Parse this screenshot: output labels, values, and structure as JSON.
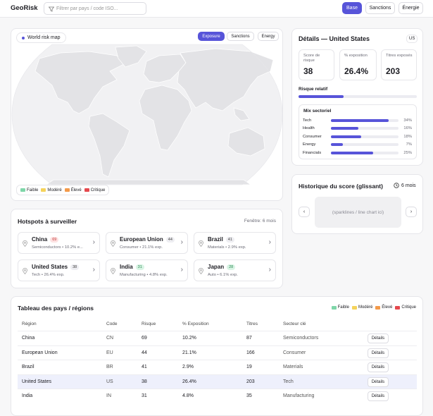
{
  "topbar": {
    "logo": "GeoRisk",
    "search_placeholder": "Filtrer par pays / code ISO...",
    "modes": [
      "Base",
      "Sanctions",
      "Énergie"
    ]
  },
  "map": {
    "title": "World risk map",
    "tabs": [
      "Exposure",
      "Sanctions",
      "Energy"
    ],
    "legend": [
      "Faible",
      "Modéré",
      "Élevé",
      "Critique"
    ]
  },
  "details": {
    "title": "Détails — United States",
    "code": "US",
    "stats": [
      {
        "label": "Score de risque",
        "value": 38
      },
      {
        "label": "% exposition",
        "value": 26.4,
        "value_label": "26.4%"
      },
      {
        "label": "Titres exposés",
        "value": 203
      }
    ],
    "relative_label": "Risque relatif",
    "mix_title": "Mix sectoriel",
    "mix": [
      {
        "name": "Tech",
        "value": 34,
        "value_label": "34%"
      },
      {
        "name": "Health",
        "value": 16,
        "value_label": "16%"
      },
      {
        "name": "Consumer",
        "value": 18,
        "value_label": "18%"
      },
      {
        "name": "Energy",
        "value": 7,
        "value_label": "7%"
      },
      {
        "name": "Financials",
        "value": 25,
        "value_label": "25%"
      }
    ]
  },
  "history": {
    "title": "Historique du score (glissant)",
    "window": "6 mois",
    "placeholder": "(sparklines / line chart ici)"
  },
  "hotspots": {
    "title": "Hotspots à surveiller",
    "window": "Fenêtre: 6 mois",
    "items": [
      {
        "name": "China",
        "score": 69,
        "sub": "Semiconductors • 10.2% e..."
      },
      {
        "name": "European Union",
        "score": 44,
        "sub": "Consumer • 21.1% exp."
      },
      {
        "name": "Brazil",
        "score": 41,
        "sub": "Materials • 2.9% exp."
      },
      {
        "name": "United States",
        "score": 38,
        "sub": "Tech • 26.4% exp."
      },
      {
        "name": "India",
        "score": 31,
        "sub": "Manufacturing • 4.8% exp."
      },
      {
        "name": "Japan",
        "score": 28,
        "sub": "Auto • 6.1% exp."
      }
    ]
  },
  "table": {
    "title": "Tableau des pays / régions",
    "legend": [
      "Faible",
      "Modéré",
      "Élevé",
      "Critique"
    ],
    "columns": [
      "Région",
      "Code",
      "Risque",
      "% Exposition",
      "Titres",
      "Secteur clé"
    ],
    "rows": [
      [
        "China",
        "CN",
        69,
        "10.2%",
        87,
        "Semiconductors",
        "Détails"
      ],
      [
        "European Union",
        "EU",
        44,
        "21.1%",
        166,
        "Consumer",
        "Détails"
      ],
      [
        "Brazil",
        "BR",
        41,
        "2.9%",
        19,
        "Materials",
        "Détails"
      ],
      [
        "United States",
        "US",
        38,
        "26.4%",
        203,
        "Tech",
        "Détails"
      ],
      [
        "India",
        "IN",
        31,
        "4.8%",
        35,
        "Manufacturing",
        "Détails"
      ]
    ]
  }
}
